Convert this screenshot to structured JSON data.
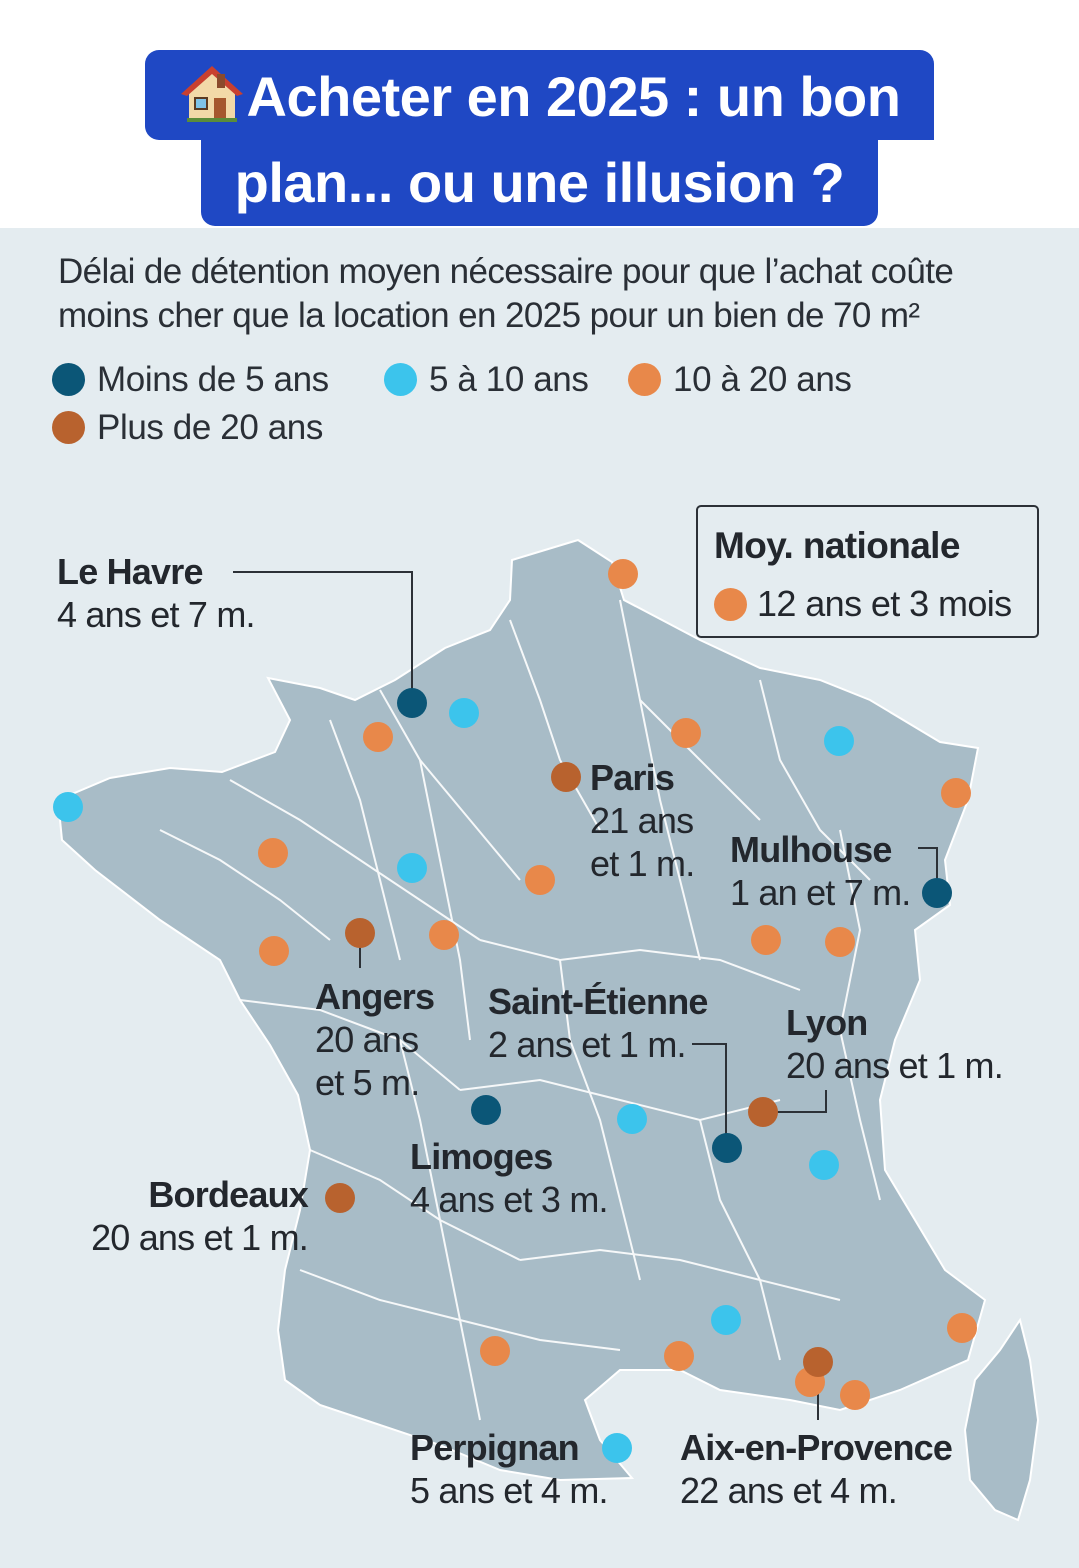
{
  "header": {
    "title_line1": "Acheter en 2025 : un bon",
    "title_line2": "plan... ou une illusion ?",
    "icon": "house-icon"
  },
  "subtitle_line1": "Délai de détention moyen nécessaire pour que l’achat coûte",
  "subtitle_line2": "moins cher que la location en 2025 pour un bien de 70 m²",
  "colors": {
    "lt5": "#0b5677",
    "5to10": "#3cc4ec",
    "10to20": "#e8884a",
    "gt20": "#b8622e",
    "land": "#a8bcc7",
    "borders": "#ffffff",
    "title_bg": "#1f48c4"
  },
  "legend": {
    "items": [
      {
        "key": "lt5",
        "label": "Moins de 5 ans"
      },
      {
        "key": "5to10",
        "label": "5 à 10 ans"
      },
      {
        "key": "10to20",
        "label": "10 à 20 ans"
      },
      {
        "key": "gt20",
        "label": "Plus de 20 ans"
      }
    ]
  },
  "national": {
    "title": "Moy. nationale",
    "value": "12 ans et 3 mois",
    "category": "10to20"
  },
  "cities": [
    {
      "name": "Le Havre",
      "value": "4 ans et 7 m.",
      "category": "lt5"
    },
    {
      "name": "Paris",
      "value_line1": "21 ans",
      "value_line2": "et 1 m.",
      "category": "gt20"
    },
    {
      "name": "Mulhouse",
      "value": "1 an et 7 m.",
      "category": "lt5"
    },
    {
      "name": "Angers",
      "value_line1": "20 ans",
      "value_line2": "et 5 m.",
      "category": "gt20"
    },
    {
      "name": "Saint-Étienne",
      "value": "2 ans et 1 m.",
      "category": "lt5"
    },
    {
      "name": "Lyon",
      "value": "20 ans et 1 m.",
      "category": "gt20"
    },
    {
      "name": "Limoges",
      "value": "4 ans et 3 m.",
      "category": "lt5"
    },
    {
      "name": "Bordeaux",
      "value": "20 ans et 1 m.",
      "category": "gt20"
    },
    {
      "name": "Perpignan",
      "value": "5 ans et 4 m.",
      "category": "5to10"
    },
    {
      "name": "Aix-en-Provence",
      "value": "22 ans et 4 m.",
      "category": "gt20"
    }
  ],
  "unlabeled_markers": {
    "5to10": 8,
    "10to20": 16
  }
}
